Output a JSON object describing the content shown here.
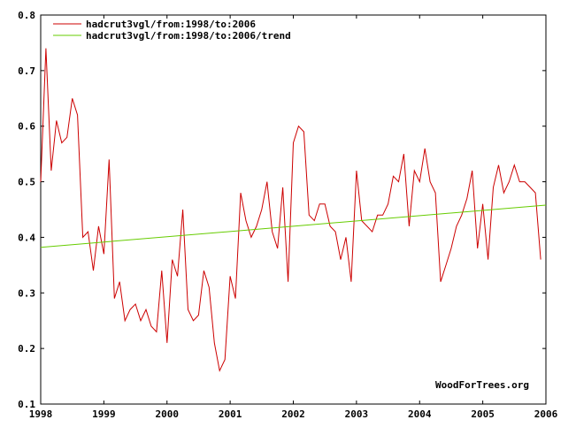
{
  "chart_data": {
    "type": "line",
    "xlim": [
      1998,
      2006
    ],
    "ylim": [
      0.1,
      0.8
    ],
    "x_ticks": [
      "1998",
      "1999",
      "2000",
      "2001",
      "2002",
      "2003",
      "2004",
      "2005",
      "2006"
    ],
    "y_ticks": [
      "0.1",
      "0.2",
      "0.3",
      "0.4",
      "0.5",
      "0.6",
      "0.7",
      "0.8"
    ],
    "grid": false,
    "legend_position": "top-left",
    "watermark": "WoodForTrees.org",
    "series": [
      {
        "name": "hadcrut3vgl/from:1998/to:2006",
        "color": "#cc0000",
        "start_year": 1998,
        "points_per_year": 12,
        "values": [
          0.5,
          0.74,
          0.52,
          0.61,
          0.57,
          0.58,
          0.65,
          0.62,
          0.4,
          0.41,
          0.34,
          0.42,
          0.37,
          0.54,
          0.29,
          0.32,
          0.25,
          0.27,
          0.28,
          0.25,
          0.27,
          0.24,
          0.23,
          0.34,
          0.21,
          0.36,
          0.33,
          0.45,
          0.27,
          0.25,
          0.26,
          0.34,
          0.31,
          0.21,
          0.16,
          0.18,
          0.33,
          0.29,
          0.48,
          0.43,
          0.4,
          0.42,
          0.45,
          0.5,
          0.41,
          0.38,
          0.49,
          0.32,
          0.57,
          0.6,
          0.59,
          0.44,
          0.43,
          0.46,
          0.46,
          0.42,
          0.41,
          0.36,
          0.4,
          0.32,
          0.52,
          0.43,
          0.42,
          0.41,
          0.44,
          0.44,
          0.46,
          0.51,
          0.5,
          0.55,
          0.42,
          0.52,
          0.5,
          0.56,
          0.5,
          0.48,
          0.32,
          0.35,
          0.38,
          0.42,
          0.44,
          0.47,
          0.52,
          0.38,
          0.46,
          0.36,
          0.49,
          0.53,
          0.48,
          0.5,
          0.53,
          0.5,
          0.5,
          0.49,
          0.48,
          0.36
        ]
      },
      {
        "name": "hadcrut3vgl/from:1998/to:2006/trend",
        "color": "#66cc00",
        "x": [
          1998,
          2006
        ],
        "values": [
          0.382,
          0.458
        ]
      }
    ]
  }
}
